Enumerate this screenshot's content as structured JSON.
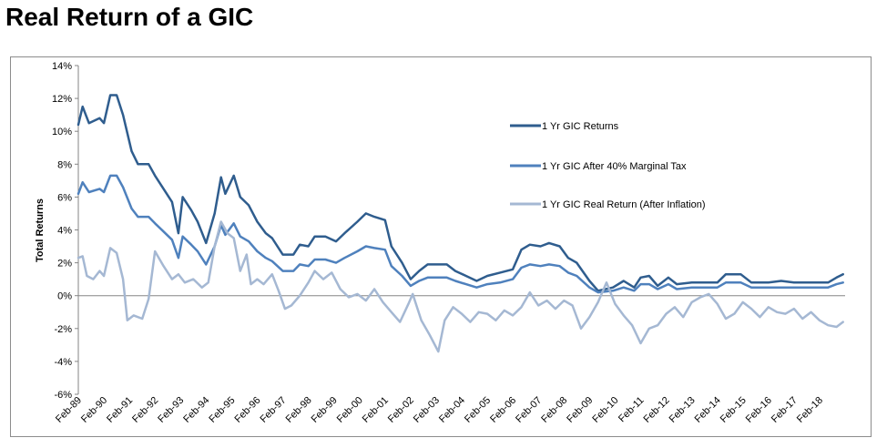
{
  "page": {
    "title": "Real Return of a GIC"
  },
  "chart_data": {
    "type": "line",
    "title": "",
    "xlabel": "",
    "ylabel": "Total Returns",
    "ylim": [
      -6,
      14
    ],
    "y_ticks": [
      -6,
      -4,
      -2,
      0,
      2,
      4,
      6,
      8,
      10,
      12,
      14
    ],
    "y_tick_labels": [
      "-6%",
      "-4%",
      "-2%",
      "0%",
      "2%",
      "4%",
      "6%",
      "8%",
      "10%",
      "12%",
      "14%"
    ],
    "x_start": "1989-02",
    "x_end": "2019-02",
    "x_tick_labels": [
      "Feb-89",
      "Feb-90",
      "Feb-91",
      "Feb-92",
      "Feb-93",
      "Feb-94",
      "Feb-95",
      "Feb-96",
      "Feb-97",
      "Feb-98",
      "Feb-99",
      "Feb-00",
      "Feb-01",
      "Feb-02",
      "Feb-03",
      "Feb-04",
      "Feb-05",
      "Feb-06",
      "Feb-07",
      "Feb-08",
      "Feb-09",
      "Feb-10",
      "Feb-11",
      "Feb-12",
      "Feb-13",
      "Feb-14",
      "Feb-15",
      "Feb-16",
      "Feb-17",
      "Feb-18"
    ],
    "grid": false,
    "legend_position": "right",
    "series": [
      {
        "name": "1 Yr GIC Returns",
        "color": "#2f5d8e",
        "points": [
          [
            "1989-02",
            10.4
          ],
          [
            "1989-04",
            11.5
          ],
          [
            "1989-07",
            10.5
          ],
          [
            "1989-12",
            10.8
          ],
          [
            "1990-02",
            10.5
          ],
          [
            "1990-05",
            12.2
          ],
          [
            "1990-08",
            12.2
          ],
          [
            "1990-11",
            11.0
          ],
          [
            "1991-03",
            8.8
          ],
          [
            "1991-06",
            8.0
          ],
          [
            "1991-11",
            8.0
          ],
          [
            "1992-02",
            7.3
          ],
          [
            "1992-06",
            6.5
          ],
          [
            "1992-10",
            5.7
          ],
          [
            "1993-01",
            3.8
          ],
          [
            "1993-03",
            6.0
          ],
          [
            "1993-07",
            5.2
          ],
          [
            "1993-10",
            4.5
          ],
          [
            "1994-02",
            3.2
          ],
          [
            "1994-06",
            5.0
          ],
          [
            "1994-09",
            7.2
          ],
          [
            "1994-11",
            6.2
          ],
          [
            "1995-03",
            7.3
          ],
          [
            "1995-06",
            6.0
          ],
          [
            "1995-10",
            5.5
          ],
          [
            "1996-02",
            4.5
          ],
          [
            "1996-06",
            3.8
          ],
          [
            "1996-09",
            3.5
          ],
          [
            "1997-02",
            2.5
          ],
          [
            "1997-07",
            2.5
          ],
          [
            "1997-10",
            3.1
          ],
          [
            "1998-02",
            3.0
          ],
          [
            "1998-05",
            3.6
          ],
          [
            "1998-10",
            3.6
          ],
          [
            "1999-03",
            3.3
          ],
          [
            "1999-07",
            3.8
          ],
          [
            "2000-01",
            4.5
          ],
          [
            "2000-05",
            5.0
          ],
          [
            "2000-09",
            4.8
          ],
          [
            "2001-02",
            4.6
          ],
          [
            "2001-05",
            3.0
          ],
          [
            "2001-10",
            2.0
          ],
          [
            "2002-02",
            1.0
          ],
          [
            "2002-06",
            1.5
          ],
          [
            "2002-10",
            1.9
          ],
          [
            "2003-03",
            1.9
          ],
          [
            "2003-07",
            1.9
          ],
          [
            "2003-11",
            1.5
          ],
          [
            "2004-04",
            1.2
          ],
          [
            "2004-09",
            0.9
          ],
          [
            "2005-02",
            1.2
          ],
          [
            "2005-08",
            1.4
          ],
          [
            "2006-02",
            1.6
          ],
          [
            "2006-06",
            2.8
          ],
          [
            "2006-10",
            3.1
          ],
          [
            "2007-03",
            3.0
          ],
          [
            "2007-07",
            3.2
          ],
          [
            "2007-12",
            3.0
          ],
          [
            "2008-04",
            2.3
          ],
          [
            "2008-08",
            2.0
          ],
          [
            "2009-02",
            0.9
          ],
          [
            "2009-06",
            0.3
          ],
          [
            "2010-01",
            0.5
          ],
          [
            "2010-06",
            0.9
          ],
          [
            "2010-11",
            0.5
          ],
          [
            "2011-02",
            1.1
          ],
          [
            "2011-06",
            1.2
          ],
          [
            "2011-10",
            0.6
          ],
          [
            "2012-03",
            1.1
          ],
          [
            "2012-07",
            0.7
          ],
          [
            "2013-02",
            0.8
          ],
          [
            "2013-07",
            0.8
          ],
          [
            "2014-02",
            0.8
          ],
          [
            "2014-06",
            1.3
          ],
          [
            "2015-01",
            1.3
          ],
          [
            "2015-06",
            0.8
          ],
          [
            "2016-02",
            0.8
          ],
          [
            "2016-08",
            0.9
          ],
          [
            "2017-02",
            0.8
          ],
          [
            "2017-09",
            0.8
          ],
          [
            "2018-06",
            0.8
          ],
          [
            "2018-10",
            1.1
          ],
          [
            "2019-01",
            1.3
          ]
        ]
      },
      {
        "name": "1 Yr GIC After 40% Marginal Tax",
        "color": "#4f81bd",
        "points": [
          [
            "1989-02",
            6.2
          ],
          [
            "1989-04",
            6.9
          ],
          [
            "1989-07",
            6.3
          ],
          [
            "1989-12",
            6.5
          ],
          [
            "1990-02",
            6.3
          ],
          [
            "1990-05",
            7.3
          ],
          [
            "1990-08",
            7.3
          ],
          [
            "1990-11",
            6.6
          ],
          [
            "1991-03",
            5.3
          ],
          [
            "1991-06",
            4.8
          ],
          [
            "1991-11",
            4.8
          ],
          [
            "1992-02",
            4.4
          ],
          [
            "1992-06",
            3.9
          ],
          [
            "1992-10",
            3.4
          ],
          [
            "1993-01",
            2.3
          ],
          [
            "1993-03",
            3.6
          ],
          [
            "1993-07",
            3.1
          ],
          [
            "1993-10",
            2.7
          ],
          [
            "1994-02",
            1.9
          ],
          [
            "1994-06",
            3.0
          ],
          [
            "1994-09",
            4.3
          ],
          [
            "1994-11",
            3.7
          ],
          [
            "1995-03",
            4.4
          ],
          [
            "1995-06",
            3.6
          ],
          [
            "1995-10",
            3.3
          ],
          [
            "1996-02",
            2.7
          ],
          [
            "1996-06",
            2.3
          ],
          [
            "1996-09",
            2.1
          ],
          [
            "1997-02",
            1.5
          ],
          [
            "1997-07",
            1.5
          ],
          [
            "1997-10",
            1.9
          ],
          [
            "1998-02",
            1.8
          ],
          [
            "1998-05",
            2.2
          ],
          [
            "1998-10",
            2.2
          ],
          [
            "1999-03",
            2.0
          ],
          [
            "1999-07",
            2.3
          ],
          [
            "2000-01",
            2.7
          ],
          [
            "2000-05",
            3.0
          ],
          [
            "2000-09",
            2.9
          ],
          [
            "2001-02",
            2.8
          ],
          [
            "2001-05",
            1.8
          ],
          [
            "2001-10",
            1.2
          ],
          [
            "2002-02",
            0.6
          ],
          [
            "2002-06",
            0.9
          ],
          [
            "2002-10",
            1.1
          ],
          [
            "2003-03",
            1.1
          ],
          [
            "2003-07",
            1.1
          ],
          [
            "2003-11",
            0.9
          ],
          [
            "2004-04",
            0.7
          ],
          [
            "2004-09",
            0.5
          ],
          [
            "2005-02",
            0.7
          ],
          [
            "2005-08",
            0.8
          ],
          [
            "2006-02",
            1.0
          ],
          [
            "2006-06",
            1.7
          ],
          [
            "2006-10",
            1.9
          ],
          [
            "2007-03",
            1.8
          ],
          [
            "2007-07",
            1.9
          ],
          [
            "2007-12",
            1.8
          ],
          [
            "2008-04",
            1.4
          ],
          [
            "2008-08",
            1.2
          ],
          [
            "2009-02",
            0.5
          ],
          [
            "2009-06",
            0.2
          ],
          [
            "2010-01",
            0.3
          ],
          [
            "2010-06",
            0.5
          ],
          [
            "2010-11",
            0.3
          ],
          [
            "2011-02",
            0.7
          ],
          [
            "2011-06",
            0.7
          ],
          [
            "2011-10",
            0.4
          ],
          [
            "2012-03",
            0.7
          ],
          [
            "2012-07",
            0.4
          ],
          [
            "2013-02",
            0.5
          ],
          [
            "2013-07",
            0.5
          ],
          [
            "2014-02",
            0.5
          ],
          [
            "2014-06",
            0.8
          ],
          [
            "2015-01",
            0.8
          ],
          [
            "2015-06",
            0.5
          ],
          [
            "2016-02",
            0.5
          ],
          [
            "2016-08",
            0.5
          ],
          [
            "2017-02",
            0.5
          ],
          [
            "2017-09",
            0.5
          ],
          [
            "2018-06",
            0.5
          ],
          [
            "2018-10",
            0.7
          ],
          [
            "2019-01",
            0.8
          ]
        ]
      },
      {
        "name": "1 Yr GIC Real Return (After Inflation)",
        "color": "#a5b8d3",
        "points": [
          [
            "1989-02",
            2.3
          ],
          [
            "1989-04",
            2.4
          ],
          [
            "1989-06",
            1.2
          ],
          [
            "1989-09",
            1.0
          ],
          [
            "1989-12",
            1.5
          ],
          [
            "1990-02",
            1.2
          ],
          [
            "1990-05",
            2.9
          ],
          [
            "1990-08",
            2.6
          ],
          [
            "1990-11",
            1.0
          ],
          [
            "1991-01",
            -1.5
          ],
          [
            "1991-04",
            -1.2
          ],
          [
            "1991-08",
            -1.4
          ],
          [
            "1991-11",
            -0.2
          ],
          [
            "1992-02",
            2.7
          ],
          [
            "1992-06",
            1.8
          ],
          [
            "1992-10",
            1.0
          ],
          [
            "1993-01",
            1.3
          ],
          [
            "1993-04",
            0.8
          ],
          [
            "1993-08",
            1.0
          ],
          [
            "1993-12",
            0.5
          ],
          [
            "1994-03",
            0.8
          ],
          [
            "1994-06",
            3.0
          ],
          [
            "1994-09",
            4.5
          ],
          [
            "1994-12",
            3.8
          ],
          [
            "1995-03",
            3.5
          ],
          [
            "1995-06",
            1.5
          ],
          [
            "1995-09",
            2.5
          ],
          [
            "1995-11",
            0.7
          ],
          [
            "1996-02",
            1.0
          ],
          [
            "1996-05",
            0.7
          ],
          [
            "1996-09",
            1.3
          ],
          [
            "1996-12",
            0.3
          ],
          [
            "1997-03",
            -0.8
          ],
          [
            "1997-06",
            -0.6
          ],
          [
            "1997-10",
            0.0
          ],
          [
            "1998-02",
            0.8
          ],
          [
            "1998-05",
            1.5
          ],
          [
            "1998-09",
            1.0
          ],
          [
            "1999-01",
            1.4
          ],
          [
            "1999-05",
            0.4
          ],
          [
            "1999-09",
            -0.1
          ],
          [
            "2000-01",
            0.1
          ],
          [
            "2000-05",
            -0.3
          ],
          [
            "2000-09",
            0.4
          ],
          [
            "2001-01",
            -0.4
          ],
          [
            "2001-05",
            -1.0
          ],
          [
            "2001-09",
            -1.6
          ],
          [
            "2002-01",
            -0.5
          ],
          [
            "2002-03",
            0.1
          ],
          [
            "2002-07",
            -1.5
          ],
          [
            "2002-11",
            -2.4
          ],
          [
            "2003-03",
            -3.4
          ],
          [
            "2003-06",
            -1.5
          ],
          [
            "2003-10",
            -0.7
          ],
          [
            "2004-02",
            -1.1
          ],
          [
            "2004-06",
            -1.6
          ],
          [
            "2004-10",
            -1.0
          ],
          [
            "2005-02",
            -1.1
          ],
          [
            "2005-06",
            -1.5
          ],
          [
            "2005-10",
            -0.9
          ],
          [
            "2006-02",
            -1.2
          ],
          [
            "2006-06",
            -0.7
          ],
          [
            "2006-10",
            0.2
          ],
          [
            "2007-02",
            -0.6
          ],
          [
            "2007-06",
            -0.3
          ],
          [
            "2007-10",
            -0.8
          ],
          [
            "2008-02",
            -0.3
          ],
          [
            "2008-06",
            -0.6
          ],
          [
            "2008-10",
            -2.0
          ],
          [
            "2009-02",
            -1.3
          ],
          [
            "2009-06",
            -0.4
          ],
          [
            "2009-10",
            0.8
          ],
          [
            "2010-02",
            -0.5
          ],
          [
            "2010-06",
            -1.2
          ],
          [
            "2010-10",
            -1.8
          ],
          [
            "2011-02",
            -2.9
          ],
          [
            "2011-06",
            -2.0
          ],
          [
            "2011-10",
            -1.8
          ],
          [
            "2012-02",
            -1.1
          ],
          [
            "2012-06",
            -0.7
          ],
          [
            "2012-10",
            -1.3
          ],
          [
            "2013-02",
            -0.4
          ],
          [
            "2013-06",
            -0.1
          ],
          [
            "2013-10",
            0.1
          ],
          [
            "2014-02",
            -0.5
          ],
          [
            "2014-06",
            -1.4
          ],
          [
            "2014-10",
            -1.1
          ],
          [
            "2015-02",
            -0.4
          ],
          [
            "2015-06",
            -0.8
          ],
          [
            "2015-10",
            -1.3
          ],
          [
            "2016-02",
            -0.7
          ],
          [
            "2016-06",
            -1.0
          ],
          [
            "2016-10",
            -1.1
          ],
          [
            "2017-02",
            -0.8
          ],
          [
            "2017-06",
            -1.4
          ],
          [
            "2017-10",
            -1.0
          ],
          [
            "2018-02",
            -1.5
          ],
          [
            "2018-06",
            -1.8
          ],
          [
            "2018-10",
            -1.9
          ],
          [
            "2019-01",
            -1.6
          ]
        ]
      }
    ]
  }
}
